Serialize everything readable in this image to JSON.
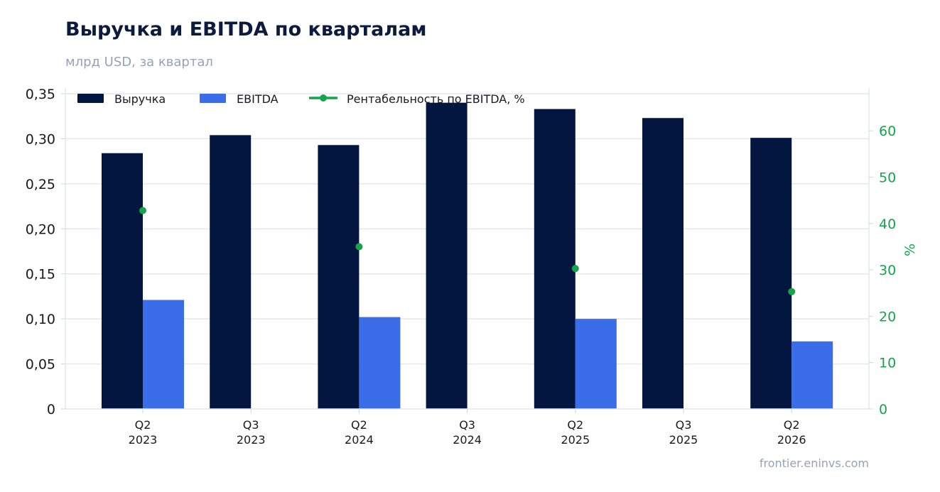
{
  "header": {
    "title": "Выручка и EBITDA по кварталам",
    "subtitle": "млрд USD, за квартал"
  },
  "footer": {
    "source": "frontier.eninvs.com"
  },
  "colors": {
    "revenue": "#03163f",
    "ebitda": "#3b6de8",
    "margin": "#16a34a",
    "grid": "#e3e7ee"
  },
  "chart_data": {
    "type": "bar",
    "title": "Выручка и EBITDA по кварталам",
    "subtitle": "млрд USD, за квартал",
    "categories": [
      [
        "Q2",
        "2023"
      ],
      [
        "Q3",
        "2023"
      ],
      [
        "Q2",
        "2024"
      ],
      [
        "Q3",
        "2024"
      ],
      [
        "Q2",
        "2025"
      ],
      [
        "Q3",
        "2025"
      ],
      [
        "Q2",
        "2026"
      ]
    ],
    "series": [
      {
        "name": "Выручка",
        "axis": "left",
        "kind": "bar",
        "values": [
          0.284,
          0.304,
          0.293,
          0.34,
          0.333,
          0.323,
          0.301
        ]
      },
      {
        "name": "EBITDA",
        "axis": "left",
        "kind": "bar",
        "values": [
          0.121,
          null,
          0.102,
          null,
          0.1,
          null,
          0.075
        ]
      },
      {
        "name": "Рентабельность по EBITDA, %",
        "axis": "right",
        "kind": "line-markers",
        "values": [
          42.8,
          null,
          35.0,
          null,
          30.3,
          null,
          25.3
        ]
      }
    ],
    "y_left": {
      "ticks": [
        "0",
        "0,05",
        "0,10",
        "0,15",
        "0,20",
        "0,25",
        "0,30",
        "0,35"
      ],
      "ylim": [
        0,
        0.35
      ]
    },
    "y_right": {
      "label": "%",
      "ticks": [
        "0",
        "10",
        "20",
        "30",
        "40",
        "50",
        "60"
      ],
      "ylim": [
        0,
        68
      ]
    },
    "grid": true,
    "legend_position": "top-left"
  }
}
